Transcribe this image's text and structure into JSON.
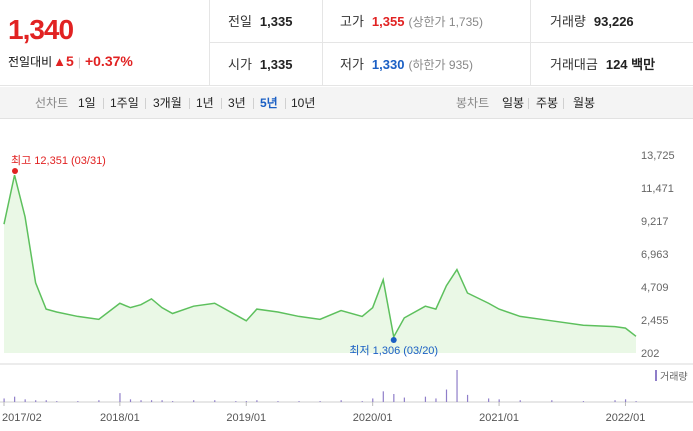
{
  "price": {
    "now": "1,340",
    "change_label": "전일대비",
    "change": "5",
    "percent": "+0.37%"
  },
  "stats": {
    "prev": {
      "label": "전일",
      "value": "1,335"
    },
    "open": {
      "label": "시가",
      "value": "1,335"
    },
    "high": {
      "label": "고가",
      "value": "1,355",
      "sub": "(상한가 1,735)"
    },
    "low": {
      "label": "저가",
      "value": "1,330",
      "sub": "(하한가 935)"
    },
    "volume": {
      "label": "거래량",
      "value": "93,226"
    },
    "amount": {
      "label": "거래대금",
      "value": "124 백만"
    }
  },
  "line_tabs": {
    "title": "선차트",
    "items": [
      "1일",
      "1주일",
      "3개월",
      "1년",
      "3년",
      "5년",
      "10년"
    ],
    "active": "5년"
  },
  "candle_tabs": {
    "title": "봉차트",
    "items": [
      "일봉",
      "주봉",
      "월봉"
    ]
  },
  "colors": {
    "up": "#e12222",
    "down": "#1a5fc4",
    "line": "#5dc05d",
    "fill": "#eaf8e6",
    "volume": "#8f7ec9"
  },
  "chart_data": {
    "type": "area",
    "x_tick_labels": [
      "2017/02",
      "2018/01",
      "2019/01",
      "2020/01",
      "2021/01",
      "2022/01"
    ],
    "y_tick_labels": [
      "13,725",
      "11,471",
      "9,217",
      "6,963",
      "4,709",
      "2,455",
      "202"
    ],
    "ylim": [
      202,
      13725
    ],
    "max_label": "최고 12,351 (03/31)",
    "min_label": "최저 1,306 (03/20)",
    "volume_label": "거래량",
    "x": [
      "2017/02",
      "2017/03",
      "2017/04",
      "2017/05",
      "2017/06",
      "2017/07",
      "2017/09",
      "2017/11",
      "2018/01",
      "2018/02",
      "2018/03",
      "2018/04",
      "2018/05",
      "2018/06",
      "2018/08",
      "2018/10",
      "2018/12",
      "2019/01",
      "2019/02",
      "2019/04",
      "2019/06",
      "2019/08",
      "2019/10",
      "2019/12",
      "2020/01",
      "2020/02",
      "2020/03",
      "2020/04",
      "2020/06",
      "2020/07",
      "2020/08",
      "2020/09",
      "2020/10",
      "2020/12",
      "2021/01",
      "2021/03",
      "2021/06",
      "2021/09",
      "2021/12",
      "2022/01",
      "2022/02"
    ],
    "values": [
      9000,
      12351,
      9500,
      5000,
      3200,
      3000,
      2700,
      2500,
      3600,
      3300,
      3500,
      3900,
      3300,
      2900,
      3400,
      3600,
      2800,
      2400,
      3200,
      3000,
      2700,
      2500,
      3100,
      2700,
      3300,
      5200,
      1306,
      2600,
      3400,
      3200,
      4800,
      5900,
      4300,
      3600,
      3200,
      2700,
      2400,
      2100,
      2000,
      1900,
      1340
    ],
    "volume": [
      4,
      6,
      3,
      2,
      2,
      1,
      1,
      2,
      10,
      3,
      2,
      2,
      2,
      1,
      2,
      2,
      1,
      1,
      2,
      1,
      1,
      1,
      2,
      1,
      4,
      12,
      9,
      5,
      6,
      4,
      14,
      36,
      8,
      4,
      3,
      2,
      2,
      1,
      2,
      3,
      1
    ]
  }
}
